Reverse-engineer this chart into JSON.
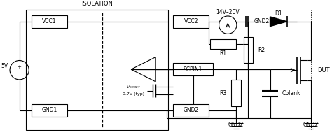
{
  "bg_color": "#ffffff",
  "line_color": "#000000",
  "isolation_label": "ISOLATION",
  "voltage_source_label": "14V–20V",
  "v5_label": "5V",
  "vcc1_label": "VCC1",
  "gnd1_label": "GND1",
  "vcc2_label": "VCC2",
  "scpin1_label": "SCPIN1",
  "gnd2_label": "GND2",
  "vscdet_label": "V_{SCDET}",
  "v07_label": "0.7V (typ)",
  "r1_label": "R1",
  "r2_label": "R2",
  "r3_label": "R3",
  "cblank_label": "Cblank",
  "d1_label": "D1",
  "dut_label": "DUT"
}
